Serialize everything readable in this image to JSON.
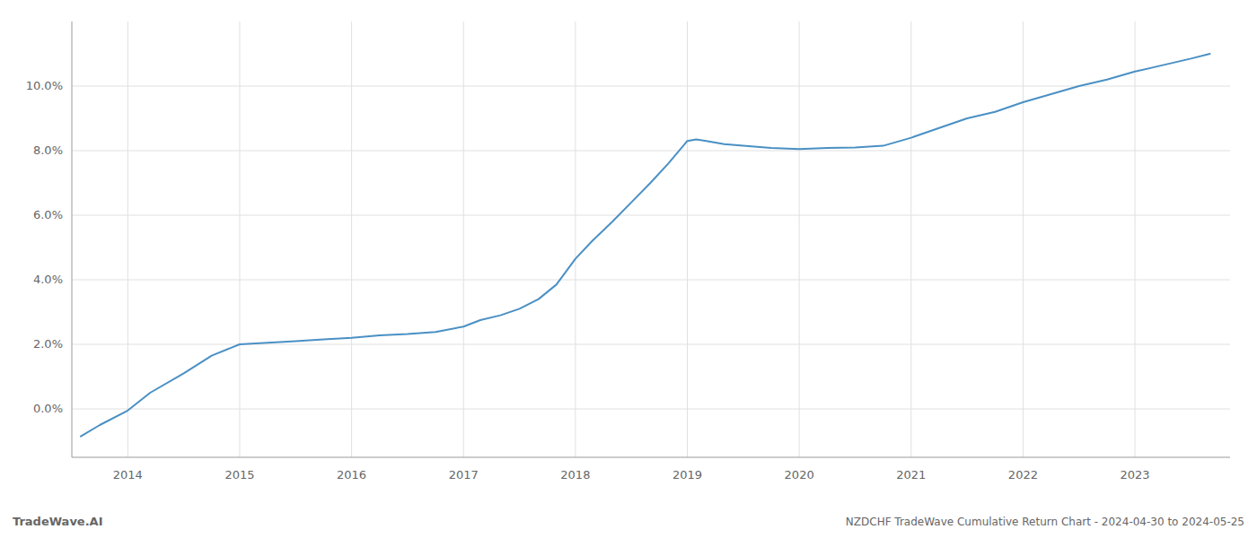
{
  "chart_data": {
    "type": "line",
    "title": "NZDCHF TradeWave Cumulative Return Chart - 2024-04-30 to 2024-05-25",
    "annotations": [
      "TradeWave.AI"
    ],
    "color": "#4a90c4",
    "grid": true,
    "x": [
      2013.58,
      2013.75,
      2014.0,
      2014.2,
      2014.5,
      2014.75,
      2015.0,
      2015.25,
      2015.5,
      2015.75,
      2016.0,
      2016.25,
      2016.5,
      2016.75,
      2017.0,
      2017.15,
      2017.33,
      2017.5,
      2017.67,
      2017.83,
      2018.0,
      2018.15,
      2018.33,
      2018.5,
      2018.67,
      2018.83,
      2019.0,
      2019.08,
      2019.17,
      2019.33,
      2019.5,
      2019.75,
      2020.0,
      2020.25,
      2020.5,
      2020.75,
      2021.0,
      2021.25,
      2021.5,
      2021.75,
      2022.0,
      2022.25,
      2022.5,
      2022.75,
      2023.0,
      2023.25,
      2023.5,
      2023.67
    ],
    "values": [
      -0.85,
      -0.5,
      -0.05,
      0.5,
      1.1,
      1.65,
      2.0,
      2.05,
      2.1,
      2.15,
      2.2,
      2.28,
      2.32,
      2.38,
      2.55,
      2.75,
      2.9,
      3.1,
      3.4,
      3.85,
      4.65,
      5.2,
      5.8,
      6.4,
      7.0,
      7.6,
      8.3,
      8.35,
      8.3,
      8.2,
      8.15,
      8.08,
      8.05,
      8.08,
      8.1,
      8.15,
      8.4,
      8.7,
      9.0,
      9.2,
      9.5,
      9.75,
      10.0,
      10.2,
      10.45,
      10.65,
      10.85,
      11.0
    ],
    "xlim": [
      2013.5,
      2023.85
    ],
    "ylim": [
      -1.5,
      12.0
    ],
    "xticks": [
      2014,
      2015,
      2016,
      2017,
      2018,
      2019,
      2020,
      2021,
      2022,
      2023
    ],
    "yticks": [
      {
        "value": 0.0,
        "label": "0.0%"
      },
      {
        "value": 2.0,
        "label": "2.0%"
      },
      {
        "value": 4.0,
        "label": "4.0%"
      },
      {
        "value": 6.0,
        "label": "6.0%"
      },
      {
        "value": 8.0,
        "label": "8.0%"
      },
      {
        "value": 10.0,
        "label": "10.0%"
      }
    ]
  }
}
